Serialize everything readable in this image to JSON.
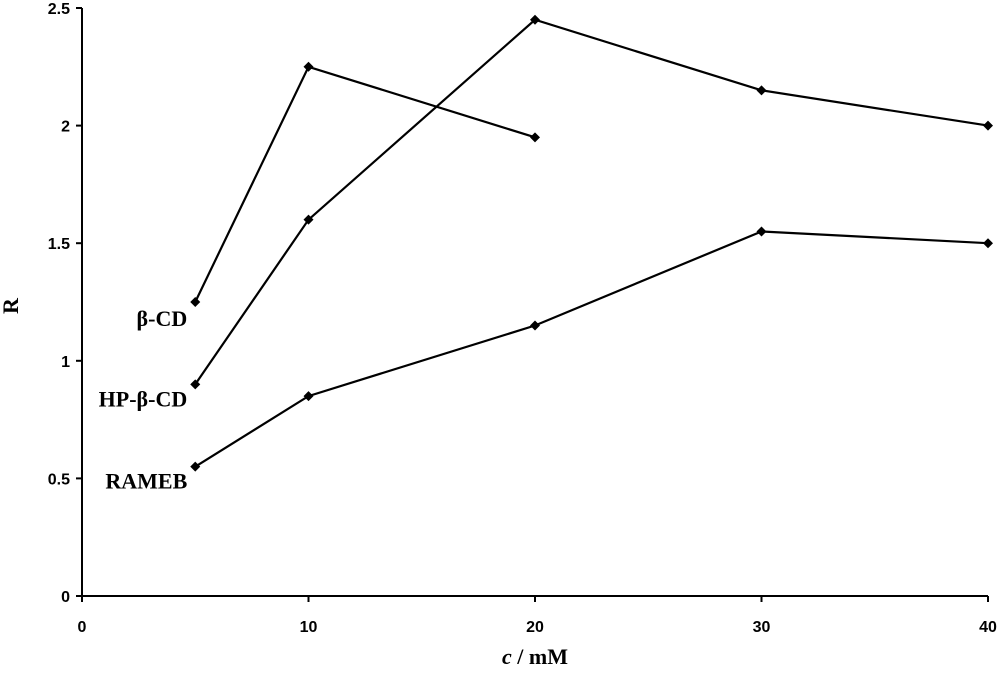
{
  "chart_data": {
    "type": "line",
    "xlabel_italic": "c",
    "xlabel_rest": " / mM",
    "ylabel": "R",
    "xlim": [
      0,
      40
    ],
    "ylim": [
      0,
      2.5
    ],
    "xticks": [
      "0",
      "10",
      "20",
      "30",
      "40"
    ],
    "yticks": [
      "0",
      "0.5",
      "1",
      "1.5",
      "2",
      "2.5"
    ],
    "series": [
      {
        "name": "β-CD",
        "x": [
          5,
          10,
          20
        ],
        "y": [
          1.25,
          2.25,
          1.95
        ]
      },
      {
        "name": "HP-β-CD",
        "x": [
          5,
          10,
          20,
          30,
          40
        ],
        "y": [
          0.9,
          1.6,
          2.45,
          2.15,
          2.0
        ]
      },
      {
        "name": "RAMEB",
        "x": [
          5,
          10,
          20,
          30,
          40
        ],
        "y": [
          0.55,
          0.85,
          1.15,
          1.55,
          1.5
        ]
      }
    ]
  }
}
